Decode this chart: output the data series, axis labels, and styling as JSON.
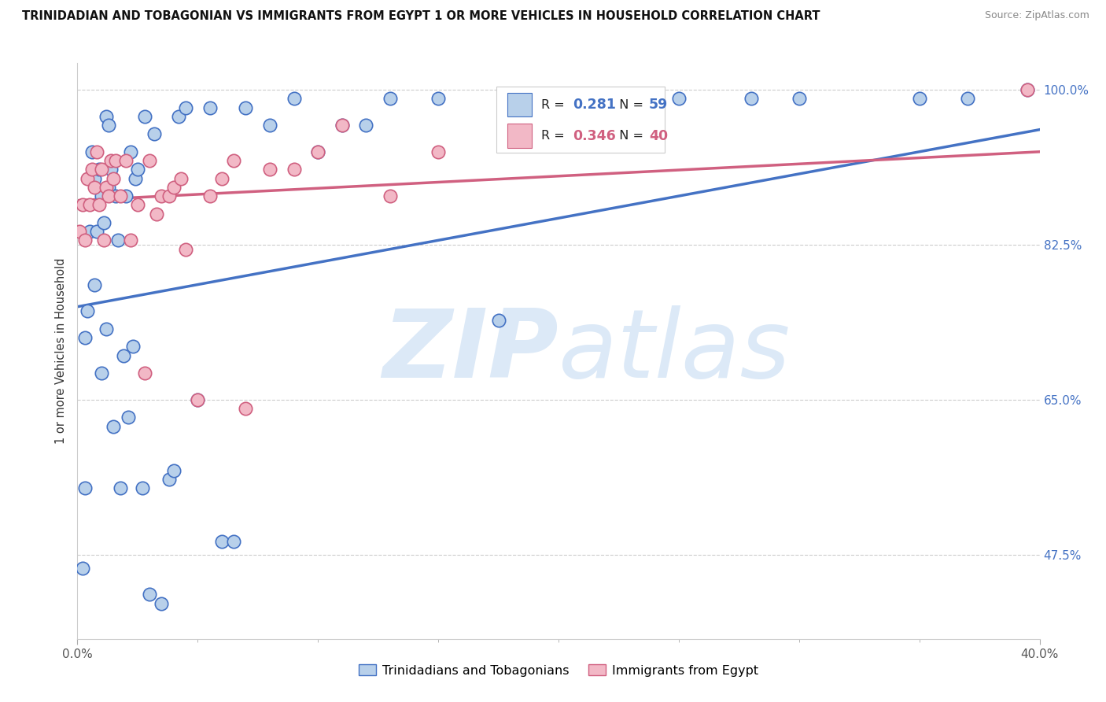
{
  "title": "TRINIDADIAN AND TOBAGONIAN VS IMMIGRANTS FROM EGYPT 1 OR MORE VEHICLES IN HOUSEHOLD CORRELATION CHART",
  "source": "Source: ZipAtlas.com",
  "ylabel": "1 or more Vehicles in Household",
  "ytick_labels": [
    "100.0%",
    "82.5%",
    "65.0%",
    "47.5%"
  ],
  "ytick_values": [
    1.0,
    0.825,
    0.65,
    0.475
  ],
  "x_min": 0.0,
  "x_max": 0.4,
  "y_min": 0.38,
  "y_max": 1.03,
  "legend_label_blue": "Trinidadians and Tobagonians",
  "legend_label_pink": "Immigrants from Egypt",
  "blue_r_text": "R = ",
  "blue_r_val": "0.281",
  "blue_n_text": "N = ",
  "blue_n_val": "59",
  "pink_r_text": "R = ",
  "pink_r_val": "0.346",
  "pink_n_text": "N = ",
  "pink_n_val": "40",
  "blue_scatter_x": [
    0.002,
    0.003,
    0.003,
    0.004,
    0.005,
    0.006,
    0.007,
    0.007,
    0.008,
    0.009,
    0.01,
    0.01,
    0.011,
    0.012,
    0.012,
    0.013,
    0.013,
    0.014,
    0.015,
    0.016,
    0.017,
    0.018,
    0.019,
    0.02,
    0.021,
    0.022,
    0.023,
    0.024,
    0.025,
    0.027,
    0.028,
    0.03,
    0.032,
    0.035,
    0.038,
    0.04,
    0.042,
    0.045,
    0.05,
    0.055,
    0.06,
    0.065,
    0.07,
    0.08,
    0.09,
    0.1,
    0.11,
    0.12,
    0.13,
    0.15,
    0.175,
    0.2,
    0.22,
    0.25,
    0.28,
    0.3,
    0.35,
    0.37,
    0.395
  ],
  "blue_scatter_y": [
    0.46,
    0.72,
    0.55,
    0.75,
    0.84,
    0.93,
    0.78,
    0.9,
    0.84,
    0.91,
    0.68,
    0.88,
    0.85,
    0.97,
    0.73,
    0.96,
    0.89,
    0.91,
    0.62,
    0.88,
    0.83,
    0.55,
    0.7,
    0.88,
    0.63,
    0.93,
    0.71,
    0.9,
    0.91,
    0.55,
    0.97,
    0.43,
    0.95,
    0.42,
    0.56,
    0.57,
    0.97,
    0.98,
    0.65,
    0.98,
    0.49,
    0.49,
    0.98,
    0.96,
    0.99,
    0.93,
    0.96,
    0.96,
    0.99,
    0.99,
    0.74,
    0.98,
    0.95,
    0.99,
    0.99,
    0.99,
    0.99,
    0.99,
    1.0
  ],
  "pink_scatter_x": [
    0.001,
    0.002,
    0.003,
    0.004,
    0.005,
    0.006,
    0.007,
    0.008,
    0.009,
    0.01,
    0.011,
    0.012,
    0.013,
    0.014,
    0.015,
    0.016,
    0.018,
    0.02,
    0.022,
    0.025,
    0.028,
    0.03,
    0.033,
    0.035,
    0.038,
    0.04,
    0.043,
    0.045,
    0.05,
    0.055,
    0.06,
    0.065,
    0.07,
    0.08,
    0.09,
    0.1,
    0.11,
    0.13,
    0.15,
    0.395
  ],
  "pink_scatter_y": [
    0.84,
    0.87,
    0.83,
    0.9,
    0.87,
    0.91,
    0.89,
    0.93,
    0.87,
    0.91,
    0.83,
    0.89,
    0.88,
    0.92,
    0.9,
    0.92,
    0.88,
    0.92,
    0.83,
    0.87,
    0.68,
    0.92,
    0.86,
    0.88,
    0.88,
    0.89,
    0.9,
    0.82,
    0.65,
    0.88,
    0.9,
    0.92,
    0.64,
    0.91,
    0.91,
    0.93,
    0.96,
    0.88,
    0.93,
    1.0
  ],
  "blue_line_x0": 0.0,
  "blue_line_x1": 0.4,
  "blue_line_y0": 0.755,
  "blue_line_y1": 0.955,
  "pink_line_x0": 0.0,
  "pink_line_x1": 0.4,
  "pink_line_y0": 0.875,
  "pink_line_y1": 0.93,
  "dot_color_blue": "#b8d0ea",
  "dot_color_pink": "#f2b8c6",
  "line_color_blue": "#4472c4",
  "line_color_pink": "#d06080",
  "background_color": "#ffffff",
  "watermark_zip": "ZIP",
  "watermark_atlas": "atlas",
  "watermark_color": "#dce9f7"
}
